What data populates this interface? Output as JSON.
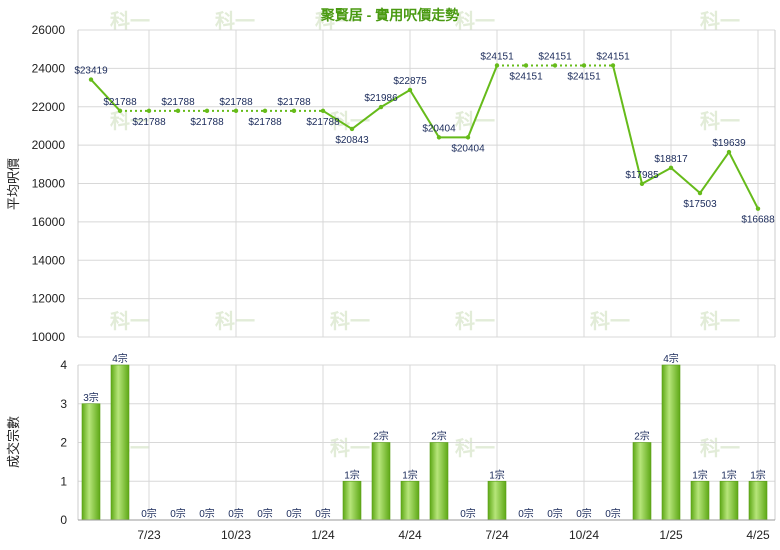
{
  "chart_data": [
    {
      "type": "line",
      "title": "聚賢居 - 實用呎價走勢",
      "ylabel": "平均呎價",
      "ylim": [
        10000,
        26000
      ],
      "yticks": [
        10000,
        12000,
        14000,
        16000,
        18000,
        20000,
        22000,
        24000,
        26000
      ],
      "grid": true,
      "x_index": [
        0,
        1,
        2,
        3,
        4,
        5,
        6,
        7,
        8,
        9,
        10,
        11,
        12,
        13,
        14,
        15,
        16,
        17,
        18,
        19,
        20,
        21,
        22,
        23
      ],
      "values": [
        23419,
        21788,
        21788,
        21788,
        21788,
        21788,
        21788,
        21788,
        21788,
        20843,
        21986,
        22875,
        20404,
        20404,
        24151,
        24151,
        24151,
        24151,
        24151,
        17985,
        18817,
        17503,
        19639,
        16688
      ],
      "data_labels": [
        "$23419",
        "$21788",
        "$21788",
        "$21788",
        "$21788",
        "$21788",
        "$21788",
        "$21788",
        "$21788",
        "$20843",
        "$21986",
        "$22875",
        "$20404",
        "$20404",
        "$24151",
        "$24151",
        "$24151",
        "$24151",
        "$24151",
        "$17985",
        "$18817",
        "$17503",
        "$19639",
        "$16688"
      ],
      "label_side": [
        "above",
        "above",
        "below",
        "above",
        "below",
        "above",
        "below",
        "above",
        "below",
        "below",
        "above",
        "above",
        "above",
        "below",
        "above",
        "below",
        "above",
        "below",
        "above",
        "above",
        "above",
        "below",
        "above",
        "below"
      ],
      "interpolated": [
        false,
        false,
        true,
        true,
        true,
        true,
        true,
        true,
        false,
        false,
        false,
        false,
        false,
        false,
        false,
        true,
        true,
        true,
        false,
        false,
        false,
        false,
        false,
        false
      ],
      "colors": {
        "line": "#66bb1a",
        "grid": "#d8d8d8",
        "title": "#4a9a12"
      }
    },
    {
      "type": "bar",
      "ylabel": "成交宗數",
      "ylim": [
        0,
        4
      ],
      "yticks": [
        0,
        1,
        2,
        3,
        4
      ],
      "grid": true,
      "x_index": [
        0,
        1,
        2,
        3,
        4,
        5,
        6,
        7,
        8,
        9,
        10,
        11,
        12,
        13,
        14,
        15,
        16,
        17,
        18,
        19,
        20,
        21,
        22,
        23
      ],
      "values": [
        3,
        4,
        0,
        0,
        0,
        0,
        0,
        0,
        0,
        1,
        2,
        1,
        2,
        0,
        1,
        0,
        0,
        0,
        0,
        2,
        4,
        1,
        1,
        1
      ],
      "data_labels": [
        "3宗",
        "4宗",
        "0宗",
        "0宗",
        "0宗",
        "0宗",
        "0宗",
        "0宗",
        "0宗",
        "1宗",
        "2宗",
        "1宗",
        "2宗",
        "0宗",
        "1宗",
        "0宗",
        "0宗",
        "0宗",
        "0宗",
        "2宗",
        "4宗",
        "1宗",
        "1宗",
        "1宗"
      ],
      "x_tick_labels": [
        {
          "label": "7/23",
          "index": 2
        },
        {
          "label": "10/23",
          "index": 5
        },
        {
          "label": "1/24",
          "index": 8
        },
        {
          "label": "4/24",
          "index": 11
        },
        {
          "label": "7/24",
          "index": 14
        },
        {
          "label": "10/24",
          "index": 17
        },
        {
          "label": "1/25",
          "index": 20
        },
        {
          "label": "4/25",
          "index": 23
        }
      ],
      "colors": {
        "bar": "#77c12a",
        "bar_light": "#b6e57a",
        "grid": "#d8d8d8"
      }
    }
  ],
  "watermark": "科一"
}
